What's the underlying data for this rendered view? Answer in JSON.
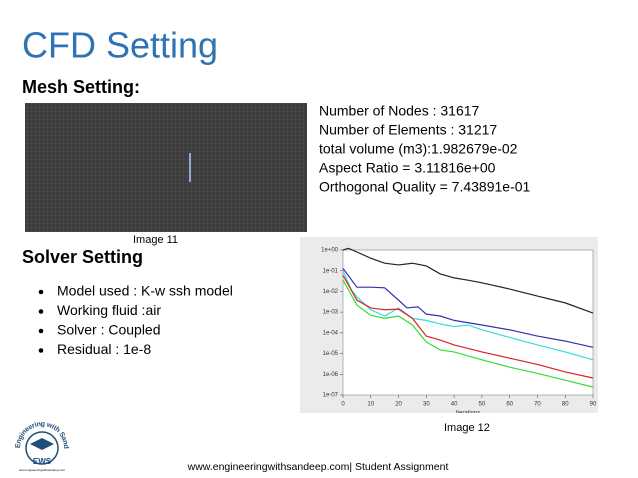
{
  "title": "CFD Setting",
  "mesh": {
    "heading": "Mesh Setting:",
    "caption": "Image 11",
    "stats": [
      "Number of Nodes : 31617",
      "Number of Elements : 31217",
      "total volume (m3):1.982679e-02",
      "Aspect Ratio = 3.11816e+00",
      "Orthogonal Quality = 7.43891e-01"
    ]
  },
  "solver": {
    "heading": "Solver Setting",
    "bullets": [
      "Model used : K-w ssh model",
      "Working fluid :air",
      "Solver : Coupled",
      "Residual : 1e-8"
    ],
    "caption": "Image 12"
  },
  "footer": "www.engineeringwithsandeep.com| Student Assignment",
  "logo": {
    "arc": "Engineering with Sandeep",
    "initials": "EWS",
    "url": "www.engineeringwithsandeep.com"
  },
  "chart_data": {
    "type": "line",
    "x_label": "Iterations",
    "log_y": true,
    "grid": false,
    "xlim": [
      0,
      90
    ],
    "xticks": [
      0,
      10,
      20,
      30,
      40,
      50,
      60,
      70,
      80,
      90
    ],
    "ylim": [
      1e-07,
      1
    ],
    "yticks": [
      {
        "value": 1,
        "label": "1e+00"
      },
      {
        "value": 0.1,
        "label": "1e-01"
      },
      {
        "value": 0.01,
        "label": "1e-02"
      },
      {
        "value": 0.001,
        "label": "1e-03"
      },
      {
        "value": 0.0001,
        "label": "1e-04"
      },
      {
        "value": 1e-05,
        "label": "1e-05"
      },
      {
        "value": 1e-06,
        "label": "1e-06"
      },
      {
        "value": 1e-07,
        "label": "1e-07"
      }
    ],
    "series": [
      {
        "color": "#222222",
        "x": [
          0,
          2,
          5,
          10,
          15,
          20,
          25,
          30,
          35,
          40,
          45,
          50,
          60,
          70,
          80,
          90
        ],
        "values": [
          1,
          1.2,
          0.8,
          0.4,
          0.23,
          0.19,
          0.23,
          0.17,
          0.07,
          0.045,
          0.035,
          0.026,
          0.013,
          0.006,
          0.0028,
          0.0009
        ]
      },
      {
        "color": "#3333aa",
        "x": [
          0,
          5,
          10,
          15,
          20,
          23,
          27,
          30,
          35,
          40,
          50,
          60,
          70,
          80,
          90
        ],
        "values": [
          0.13,
          0.016,
          0.016,
          0.015,
          0.0038,
          0.0016,
          0.0018,
          0.0008,
          0.00065,
          0.0004,
          0.00024,
          0.00014,
          7e-05,
          4e-05,
          2e-05
        ]
      },
      {
        "color": "#33dddd",
        "x": [
          0,
          3,
          5,
          10,
          15,
          20,
          25,
          30,
          35,
          40,
          45,
          50,
          60,
          70,
          80,
          90
        ],
        "values": [
          0.1,
          0.012,
          0.0054,
          0.0013,
          0.00065,
          0.0016,
          0.0005,
          0.0004,
          0.00027,
          0.0002,
          0.00024,
          0.00014,
          6e-05,
          2.6e-05,
          1.2e-05,
          5e-06
        ]
      },
      {
        "color": "#dd2222",
        "x": [
          0,
          5,
          10,
          15,
          20,
          25,
          30,
          35,
          40,
          50,
          60,
          70,
          80,
          90
        ],
        "values": [
          0.06,
          0.0038,
          0.0016,
          0.0013,
          0.0014,
          0.0005,
          7e-05,
          4.5e-05,
          2.6e-05,
          1.2e-05,
          6e-06,
          3e-06,
          1.3e-06,
          6.6e-07
        ]
      },
      {
        "color": "#33dd33",
        "x": [
          0,
          5,
          10,
          15,
          20,
          25,
          30,
          35,
          40,
          50,
          60,
          70,
          80,
          90
        ],
        "values": [
          0.035,
          0.0022,
          0.0007,
          0.0005,
          0.00065,
          0.00024,
          3.6e-05,
          1.5e-05,
          1.2e-05,
          5e-06,
          2.2e-06,
          1.1e-06,
          5.2e-07,
          2.4e-07
        ]
      }
    ]
  }
}
